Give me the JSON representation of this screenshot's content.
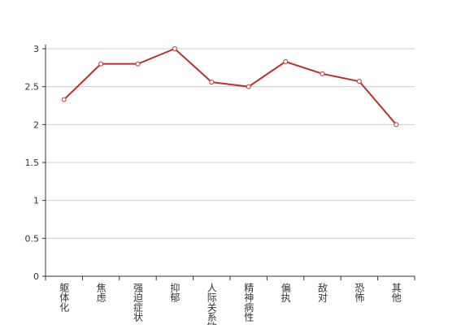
{
  "chart_data": {
    "type": "line",
    "categories": [
      "躯体化",
      "焦虑",
      "强迫症状",
      "抑郁",
      "人际关系敏感",
      "精神病性",
      "偏执",
      "敌对",
      "恐怖",
      "其他"
    ],
    "values": [
      2.33,
      2.8,
      2.8,
      3.0,
      2.56,
      2.5,
      2.83,
      2.67,
      2.57,
      2.0
    ],
    "color": "#b8312f",
    "ylim": [
      0,
      3
    ],
    "yticks": [
      0,
      0.5,
      1,
      1.5,
      2,
      2.5,
      3
    ],
    "grid": true
  }
}
